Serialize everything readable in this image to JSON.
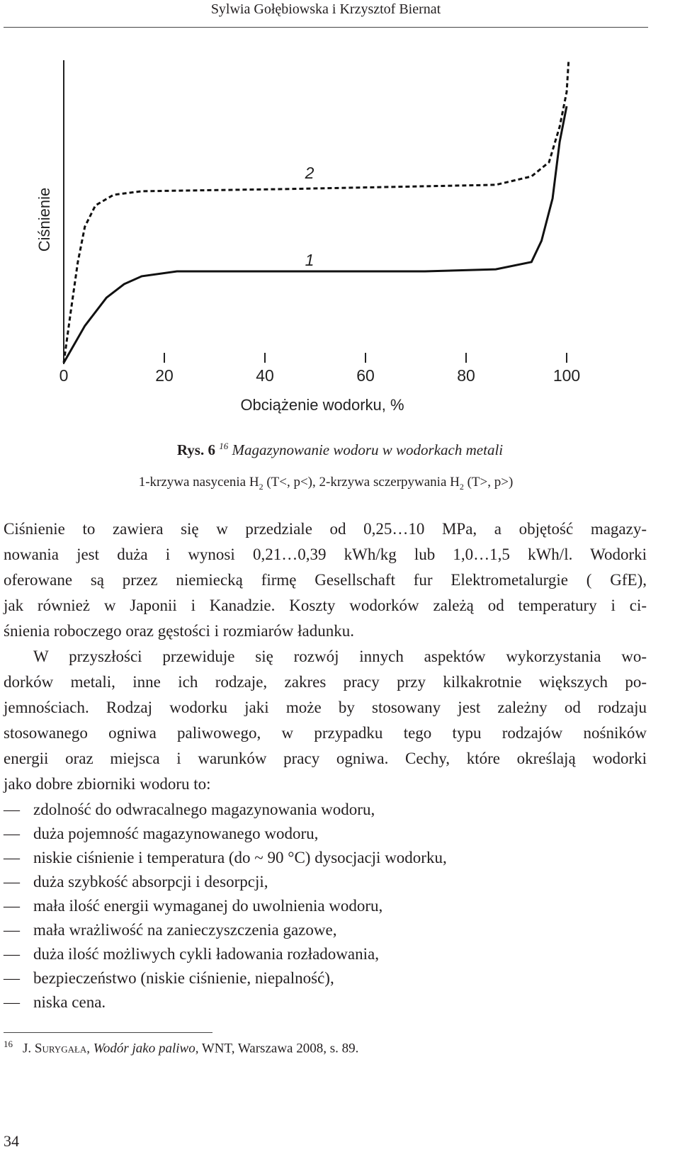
{
  "header": "Sylwia Gołębiowska i Krzysztof Biernat",
  "chart_data": {
    "type": "line",
    "xlabel": "Obciążenie wodorku, %",
    "ylabel": "Ciśnienie",
    "xlim": [
      0,
      100
    ],
    "xticks": [
      0,
      20,
      40,
      60,
      80,
      100
    ],
    "ylim": [
      0,
      100
    ],
    "annotations": [
      "2",
      "1"
    ],
    "series": [
      {
        "name": "1",
        "color": "#111111",
        "line_style": "solid",
        "x": [
          0,
          4.2,
          8.5,
          12,
          15.5,
          22.5,
          43.7,
          71.8,
          85.9,
          93,
          95,
          97.2,
          98.6,
          100
        ],
        "values": [
          0,
          12.2,
          21.5,
          26,
          28.6,
          30.2,
          30.2,
          30.2,
          30.9,
          33.3,
          40.3,
          54.3,
          73,
          84.8
        ]
      },
      {
        "name": "2",
        "color": "#111111",
        "line_style": "dashed",
        "x": [
          0,
          1.4,
          2.8,
          4.2,
          6.3,
          9.9,
          15.5,
          43.7,
          85.9,
          93,
          96.5,
          98.6,
          100,
          100.4
        ],
        "values": [
          0,
          16.9,
          33.3,
          45,
          52,
          55.5,
          56.7,
          57.4,
          58.8,
          61.6,
          66.3,
          78,
          89.5,
          100
        ]
      }
    ]
  },
  "caption": {
    "label": "Rys. 6",
    "note_ref": "16",
    "title": "Magazynowanie wodoru w wodorkach metali",
    "line2": [
      "1-krzywa nasycenia H",
      "2",
      " (T<, p<), 2-krzywa sczerpywania H",
      "2",
      " (T>, p>)"
    ]
  },
  "paragraphs": [
    {
      "lines": [
        "Ciśnienie to zawiera się w przedziale od 0,25…10 MPa, a objętość magazy-",
        "nowania jest duża i wynosi 0,21…0,39 kWh/kg lub 1,0…1,5 kWh/l. Wodorki",
        "oferowane są przez niemiecką firmę Gesellschaft fur Elektrometalurgie ( GfE),",
        "jak również w Japonii i Kanadzie. Koszty wodorków zależą od temperatury i ci-",
        "śnienia roboczego oraz gęstości i rozmiarów ładunku."
      ]
    },
    {
      "lines": [
        "W przyszłości przewiduje się rozwój innych aspektów wykorzystania wo-",
        "dorków metali, inne ich rodzaje, zakres pracy przy kilkakrotnie większych po-",
        "jemnościach. Rodzaj wodorku jaki może by stosowany jest zależny od rodzaju",
        "stosowanego ogniwa paliwowego, w przypadku tego typu rodzajów nośników",
        "energii oraz miejsca i warunków pracy ogniwa. Cechy, które określają wodorki",
        "jako dobre zbiorniki wodoru to:"
      ]
    }
  ],
  "list": [
    "zdolność do odwracalnego magazynowania wodoru,",
    "duża pojemność magazynowanego wodoru,",
    "niskie ciśnienie i temperatura (do ~ 90 °C) dysocjacji wodorku,",
    "duża szybkość absorpcji i desorpcji,",
    "mała ilość energii wymaganej do uwolnienia wodoru,",
    "mała wrażliwość na zanieczyszczenia gazowe,",
    "duża ilość możliwych cykli ładowania rozładowania,",
    "bezpieczeństwo (niskie ciśnienie, niepalność),",
    "niska cena."
  ],
  "footnote": {
    "number": "16",
    "author": "J. Surygała",
    "sep": ", ",
    "title": "Wodór jako paliwo",
    "rest": ", WNT, Warszawa 2008, s. 89."
  },
  "page_number": "34"
}
